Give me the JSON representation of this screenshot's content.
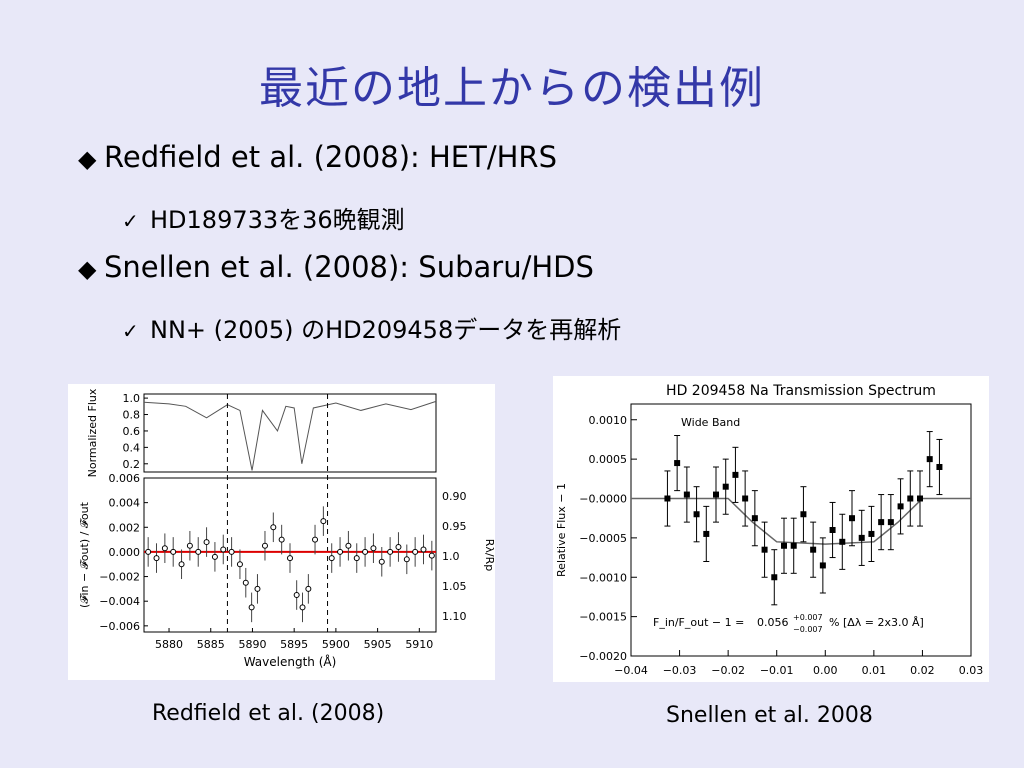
{
  "slide": {
    "title": "最近の地上からの検出例",
    "bullets": [
      {
        "marker": "◆",
        "text": "Redfield et al. (2008): HET/HRS"
      },
      {
        "marker": "✓",
        "text": "HD189733を36晩観測"
      },
      {
        "marker": "◆",
        "text": "Snellen et al. (2008): Subaru/HDS"
      },
      {
        "marker": "✓",
        "text": "NN+ (2005) のHD209458データを再解析"
      }
    ],
    "captions": [
      "Redfield et al. (2008)",
      "Snellen et al.  2008"
    ]
  },
  "chart_data": [
    {
      "type": "line",
      "panel": "top",
      "ylabel": "Normalized Flux",
      "ylim": [
        0.1,
        1.05
      ],
      "yticks": [
        "1.0",
        "0.8",
        "0.6",
        "0.4",
        "0.2"
      ],
      "x": [
        5877,
        5880,
        5882,
        5884.5,
        5887,
        5888.5,
        5889.95,
        5891.2,
        5893,
        5894,
        5895,
        5895.92,
        5897.3,
        5900,
        5903,
        5906,
        5909,
        5912
      ],
      "y": [
        0.95,
        0.93,
        0.9,
        0.76,
        0.92,
        0.85,
        0.12,
        0.85,
        0.6,
        0.9,
        0.88,
        0.2,
        0.88,
        0.94,
        0.85,
        0.93,
        0.86,
        0.96
      ]
    },
    {
      "type": "scatter",
      "panel": "bottom",
      "xlabel": "Wavelength (Å)",
      "ylabel": "(𝓕in − 𝓕out) / 𝓕out",
      "ylabel_right": "Rλ/Rp",
      "xlim": [
        5877,
        5912
      ],
      "ylim": [
        -0.0065,
        0.006
      ],
      "xticks": [
        "5880",
        "5885",
        "5890",
        "5895",
        "5900",
        "5905",
        "5910"
      ],
      "yticks": [
        "0.006",
        "0.004",
        "0.002",
        "0.000",
        "−0.002",
        "−0.004",
        "−0.006"
      ],
      "yticks_right": [
        "0.90",
        "0.95",
        "1.0",
        "1.05",
        "1.10"
      ],
      "vlines": [
        5887,
        5899
      ],
      "x": [
        5877.5,
        5878.5,
        5879.5,
        5880.5,
        5881.5,
        5882.5,
        5883.5,
        5884.5,
        5885.5,
        5886.5,
        5887.5,
        5888.5,
        5889.2,
        5889.9,
        5890.6,
        5891.5,
        5892.5,
        5893.5,
        5894.5,
        5895.3,
        5896,
        5896.7,
        5897.5,
        5898.5,
        5899.5,
        5900.5,
        5901.5,
        5902.5,
        5903.5,
        5904.5,
        5905.5,
        5906.5,
        5907.5,
        5908.5,
        5909.5,
        5910.5,
        5911.5
      ],
      "y": [
        0.0,
        -0.0005,
        0.0003,
        0.0,
        -0.001,
        0.0005,
        0.0,
        0.0008,
        -0.0004,
        0.0002,
        0.0,
        -0.001,
        -0.0025,
        -0.0045,
        -0.003,
        0.0005,
        0.002,
        0.001,
        -0.0005,
        -0.0035,
        -0.0045,
        -0.003,
        0.001,
        0.0025,
        -0.0005,
        0.0,
        0.0005,
        -0.0005,
        0.0,
        0.0003,
        -0.0008,
        0.0,
        0.0004,
        -0.0006,
        0.0,
        0.0002,
        -0.0003
      ],
      "err": 0.0012,
      "series_color": "#dd0000"
    },
    {
      "type": "scatter",
      "title": "HD 209458 Na Transmission Spectrum",
      "annotation": "Wide Band",
      "formula_lhs": "F_in/F_out − 1 =",
      "formula_value": "0.056",
      "formula_err_up": "+0.007",
      "formula_err_down": "−0.007",
      "formula_rest": "% [Δλ = 2x3.0 Å]",
      "ylabel": "Relative Flux − 1",
      "xlim": [
        -0.04,
        0.03
      ],
      "ylim": [
        -0.002,
        0.0012
      ],
      "xticks": [
        "−0.04",
        "−0.03",
        "−0.02",
        "−0.01",
        "0.00",
        "0.01",
        "0.02",
        "0.03"
      ],
      "yticks": [
        "0.0010",
        "0.0005",
        "−0.0000",
        "−0.0005",
        "−0.0010",
        "−0.0015",
        "−0.0020"
      ],
      "x": [
        -0.0325,
        -0.0305,
        -0.0285,
        -0.0265,
        -0.0245,
        -0.0225,
        -0.0205,
        -0.0185,
        -0.0165,
        -0.0145,
        -0.0125,
        -0.0105,
        -0.0085,
        -0.0065,
        -0.0045,
        -0.0025,
        -0.0005,
        0.0015,
        0.0035,
        0.0055,
        0.0075,
        0.0095,
        0.0115,
        0.0135,
        0.0155,
        0.0175,
        0.0195,
        0.0215,
        0.0235
      ],
      "y": [
        0.0,
        0.00045,
        5e-05,
        -0.0002,
        -0.00045,
        5e-05,
        0.00015,
        0.0003,
        0.0,
        -0.00025,
        -0.00065,
        -0.001,
        -0.0006,
        -0.0006,
        -0.0002,
        -0.00065,
        -0.00085,
        -0.0004,
        -0.00055,
        -0.00025,
        -0.0005,
        -0.00045,
        -0.0003,
        -0.0003,
        -0.0001,
        0.0,
        0.0,
        0.0005,
        0.0004
      ],
      "err": 0.00035,
      "model": {
        "x": [
          -0.04,
          -0.02,
          -0.015,
          -0.01,
          0.0,
          0.01,
          0.015,
          0.02,
          0.03
        ],
        "y": [
          0.0,
          0.0,
          -0.0003,
          -0.00055,
          -0.00058,
          -0.00055,
          -0.0003,
          0.0,
          0.0
        ]
      }
    }
  ]
}
